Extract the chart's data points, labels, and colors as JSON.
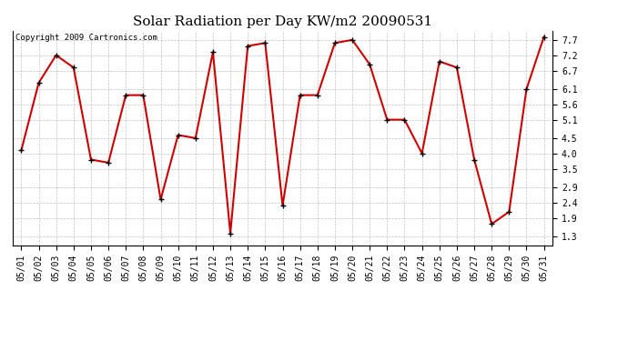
{
  "title": "Solar Radiation per Day KW/m2 20090531",
  "copyright": "Copyright 2009 Cartronics.com",
  "dates": [
    "05/01",
    "05/02",
    "05/03",
    "05/04",
    "05/05",
    "05/06",
    "05/07",
    "05/08",
    "05/09",
    "05/10",
    "05/11",
    "05/12",
    "05/13",
    "05/14",
    "05/15",
    "05/16",
    "05/17",
    "05/18",
    "05/19",
    "05/20",
    "05/21",
    "05/22",
    "05/23",
    "05/24",
    "05/25",
    "05/26",
    "05/27",
    "05/28",
    "05/29",
    "05/30",
    "05/31"
  ],
  "values": [
    4.1,
    6.3,
    7.2,
    6.8,
    3.8,
    3.7,
    5.9,
    5.9,
    2.5,
    4.6,
    4.5,
    7.3,
    1.4,
    7.5,
    7.6,
    2.3,
    5.9,
    5.9,
    7.6,
    7.7,
    6.9,
    5.1,
    5.1,
    4.0,
    7.0,
    6.8,
    3.8,
    1.7,
    2.1,
    6.1,
    7.8
  ],
  "line_color": "#cc0000",
  "marker_color": "#000000",
  "background_color": "#ffffff",
  "grid_color": "#aaaaaa",
  "ylim": [
    1.0,
    8.0
  ],
  "yticks": [
    1.3,
    1.9,
    2.4,
    2.9,
    3.5,
    4.0,
    4.5,
    5.1,
    5.6,
    6.1,
    6.7,
    7.2,
    7.7
  ],
  "title_fontsize": 11,
  "tick_fontsize": 7,
  "copyright_fontsize": 6.5
}
